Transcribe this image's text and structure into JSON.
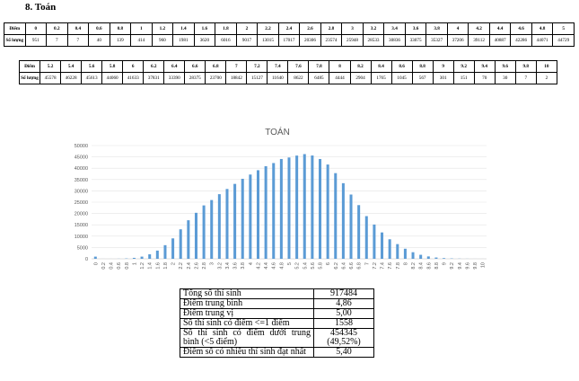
{
  "heading": "8.  Toán",
  "table1": {
    "row_header_1": "Điểm",
    "row_header_2": "Số lượng",
    "scores": [
      "0",
      "0.2",
      "0.4",
      "0.6",
      "0.8",
      "1",
      "1.2",
      "1.4",
      "1.6",
      "1.8",
      "2",
      "2.2",
      "2.4",
      "2.6",
      "2.8",
      "3",
      "3.2",
      "3.4",
      "3.6",
      "3.8",
      "4",
      "4.2",
      "4.4",
      "4.6",
      "4.8",
      "5"
    ],
    "counts": [
      "951",
      "7",
      "7",
      "40",
      "139",
      "414",
      "960",
      "1981",
      "3620",
      "6016",
      "9017",
      "13015",
      "17017",
      "20306",
      "23574",
      "25948",
      "28533",
      "30836",
      "33075",
      "35327",
      "37206",
      "39112",
      "40887",
      "42286",
      "44071",
      "44729"
    ]
  },
  "table2": {
    "row_header_1": "Điểm",
    "row_header_2": "Số lượng",
    "scores": [
      "5.2",
      "5.4",
      "5.6",
      "5.8",
      "6",
      "6.2",
      "6.4",
      "6.6",
      "6.8",
      "7",
      "7.2",
      "7.4",
      "7.6",
      "7.8",
      "8",
      "8.2",
      "8.4",
      "8.6",
      "8.8",
      "9",
      "9.2",
      "9.4",
      "9.6",
      "9.8",
      "10"
    ],
    "counts": [
      "45578",
      "46228",
      "45613",
      "44060",
      "41633",
      "37831",
      "33390",
      "28375",
      "23700",
      "18842",
      "15127",
      "11640",
      "8622",
      "6485",
      "4444",
      "2904",
      "1765",
      "1045",
      "567",
      "301",
      "151",
      "70",
      "30",
      "7",
      "2"
    ]
  },
  "chart_data": {
    "type": "bar",
    "title": "TOÁN",
    "xlabel": "",
    "ylabel": "",
    "ylim": [
      0,
      50000
    ],
    "yticks": [
      "0",
      "5000",
      "10000",
      "15000",
      "20000",
      "25000",
      "30000",
      "35000",
      "40000",
      "45000",
      "50000"
    ],
    "categories": [
      "0",
      "0.2",
      "0.4",
      "0.6",
      "0.8",
      "1",
      "1.2",
      "1.4",
      "1.6",
      "1.8",
      "2",
      "2.2",
      "2.4",
      "2.6",
      "2.8",
      "3",
      "3.2",
      "3.4",
      "3.6",
      "3.8",
      "4",
      "4.2",
      "4.4",
      "4.6",
      "4.8",
      "5",
      "5.2",
      "5.4",
      "5.6",
      "5.8",
      "6",
      "6.2",
      "6.4",
      "6.6",
      "6.8",
      "7",
      "7.2",
      "7.4",
      "7.6",
      "7.8",
      "8",
      "8.2",
      "8.4",
      "8.6",
      "8.8",
      "9",
      "9.2",
      "9.4",
      "9.6",
      "9.8",
      "10"
    ],
    "values": [
      951,
      7,
      7,
      40,
      139,
      414,
      960,
      1981,
      3620,
      6016,
      9017,
      13015,
      17017,
      20306,
      23574,
      25948,
      28533,
      30836,
      33075,
      35327,
      37206,
      39112,
      40887,
      42286,
      44071,
      44729,
      45578,
      46228,
      45613,
      44060,
      41633,
      37831,
      33390,
      28375,
      23700,
      18842,
      15127,
      11640,
      8622,
      6485,
      4444,
      2904,
      1765,
      1045,
      567,
      301,
      151,
      70,
      30,
      7,
      2
    ],
    "grid": true,
    "bar_color": "#5b9bd5"
  },
  "summary": [
    {
      "label": "Tổng số thí sinh",
      "value": "917484"
    },
    {
      "label": "Điểm trung bình",
      "value": "4,86"
    },
    {
      "label": "Điểm trung vị",
      "value": "5,00"
    },
    {
      "label": "Số thí sinh có điểm <=1 điểm",
      "value": "1558"
    },
    {
      "label": "Số thí sinh có điểm dưới trung bình (<5 điểm)",
      "value": "454345\n(49,52%)"
    },
    {
      "label": "Điểm số có nhiều thí sinh đạt nhất",
      "value": "5,40"
    }
  ]
}
